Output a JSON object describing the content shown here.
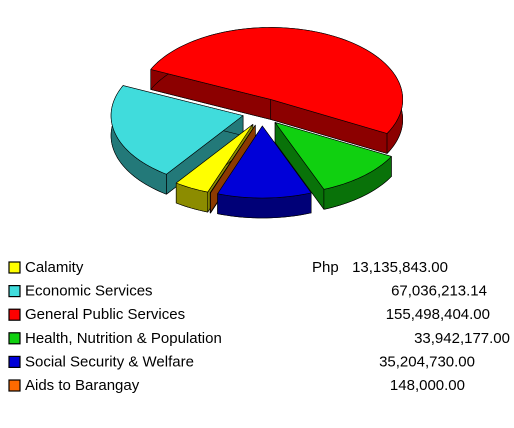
{
  "chart_data": {
    "type": "pie3d",
    "categories": [
      "Calamity",
      "Economic Services",
      "General Public Services",
      "Health, Nutrition & Population",
      "Social Security & Welfare",
      "Aids to Barangay"
    ],
    "values": [
      13135843,
      67036213.14,
      155498404,
      33942177,
      35204730,
      148000
    ],
    "value_labels": [
      "13,135,843.00",
      "67,036,213.14",
      "155,498,404.00",
      "33,942,177.00",
      "35,204,730.00",
      "148,000.00"
    ],
    "colors": [
      "#ffff00",
      "#40dcdc",
      "#ff0000",
      "#10d010",
      "#0000d8",
      "#ff6a00"
    ],
    "currency_label": "Php"
  }
}
